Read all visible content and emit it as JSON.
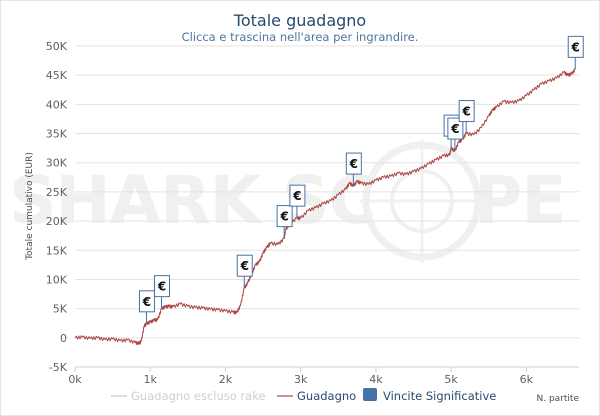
{
  "watermark": {
    "left": "SHARK SC",
    "right": "PE"
  },
  "chart_data": {
    "type": "line",
    "title": "Totale guadagno",
    "subtitle": "Clicca e trascina nell'area per ingrandire.",
    "ylabel": "Totale cumulativo (EUR)",
    "xlabel": "N. partite",
    "xlim": [
      0,
      6700
    ],
    "ylim": [
      -5000,
      50000
    ],
    "x_ticks": [
      0,
      1000,
      2000,
      3000,
      4000,
      5000,
      6000
    ],
    "x_tick_labels": [
      "0k",
      "1k",
      "2k",
      "3k",
      "4k",
      "5k",
      "6k"
    ],
    "y_ticks": [
      -5000,
      0,
      5000,
      10000,
      15000,
      20000,
      25000,
      30000,
      35000,
      40000,
      45000,
      50000
    ],
    "y_tick_labels": [
      "-5K",
      "0",
      "5K",
      "10K",
      "15K",
      "20K",
      "25K",
      "30K",
      "35K",
      "40K",
      "45K",
      "50K"
    ],
    "grid": true,
    "legend_position": "bottom",
    "series": [
      {
        "name": "Guadagno",
        "color": "#aa4643",
        "points": [
          [
            0,
            0
          ],
          [
            100,
            100
          ],
          [
            200,
            -100
          ],
          [
            300,
            0
          ],
          [
            400,
            -300
          ],
          [
            500,
            -200
          ],
          [
            600,
            -500
          ],
          [
            700,
            -400
          ],
          [
            800,
            -800
          ],
          [
            850,
            -1000
          ],
          [
            880,
            -600
          ],
          [
            920,
            2000
          ],
          [
            950,
            2400
          ],
          [
            1000,
            2700
          ],
          [
            1050,
            3000
          ],
          [
            1100,
            3100
          ],
          [
            1150,
            5000
          ],
          [
            1200,
            5300
          ],
          [
            1250,
            5400
          ],
          [
            1300,
            5300
          ],
          [
            1400,
            5800
          ],
          [
            1500,
            5400
          ],
          [
            1600,
            5200
          ],
          [
            1700,
            5100
          ],
          [
            1800,
            4900
          ],
          [
            1900,
            4800
          ],
          [
            2000,
            4600
          ],
          [
            2100,
            4400
          ],
          [
            2150,
            4300
          ],
          [
            2200,
            5500
          ],
          [
            2250,
            8500
          ],
          [
            2300,
            9500
          ],
          [
            2350,
            11000
          ],
          [
            2400,
            12500
          ],
          [
            2450,
            13000
          ],
          [
            2500,
            14500
          ],
          [
            2550,
            15500
          ],
          [
            2600,
            16200
          ],
          [
            2700,
            16000
          ],
          [
            2780,
            17000
          ],
          [
            2800,
            18500
          ],
          [
            2850,
            19500
          ],
          [
            2950,
            20500
          ],
          [
            3000,
            20500
          ],
          [
            3100,
            21800
          ],
          [
            3200,
            22300
          ],
          [
            3300,
            23000
          ],
          [
            3400,
            23500
          ],
          [
            3500,
            24500
          ],
          [
            3600,
            25500
          ],
          [
            3650,
            26500
          ],
          [
            3700,
            26000
          ],
          [
            3750,
            26800
          ],
          [
            3800,
            26500
          ],
          [
            3900,
            26300
          ],
          [
            4000,
            27000
          ],
          [
            4100,
            27500
          ],
          [
            4200,
            27700
          ],
          [
            4300,
            28200
          ],
          [
            4400,
            28000
          ],
          [
            4500,
            28500
          ],
          [
            4600,
            29000
          ],
          [
            4700,
            29800
          ],
          [
            4800,
            30500
          ],
          [
            4900,
            31200
          ],
          [
            4980,
            31300
          ],
          [
            5000,
            32500
          ],
          [
            5050,
            32000
          ],
          [
            5100,
            33500
          ],
          [
            5150,
            34000
          ],
          [
            5200,
            35000
          ],
          [
            5300,
            34800
          ],
          [
            5400,
            36000
          ],
          [
            5500,
            38000
          ],
          [
            5550,
            39000
          ],
          [
            5600,
            39500
          ],
          [
            5700,
            40500
          ],
          [
            5800,
            40300
          ],
          [
            5900,
            40600
          ],
          [
            6000,
            41500
          ],
          [
            6100,
            42500
          ],
          [
            6200,
            43500
          ],
          [
            6300,
            44000
          ],
          [
            6400,
            44500
          ],
          [
            6500,
            45500
          ],
          [
            6550,
            45000
          ],
          [
            6600,
            45200
          ],
          [
            6650,
            46000
          ]
        ]
      },
      {
        "name": "Guadagno escluso rake",
        "color": "#c8c8c8",
        "points": []
      }
    ],
    "significant_wins": {
      "name": "Vincite Significative",
      "color": "#4572a7",
      "symbol": "€",
      "points": [
        [
          950,
          2400
        ],
        [
          1150,
          5000
        ],
        [
          2250,
          8500
        ],
        [
          2780,
          17000
        ],
        [
          2950,
          20500
        ],
        [
          3700,
          26000
        ],
        [
          5000,
          32500
        ],
        [
          5050,
          32000
        ],
        [
          5200,
          35000
        ],
        [
          6650,
          46000
        ]
      ]
    }
  },
  "legend": [
    {
      "label": "Guadagno escluso rake",
      "color": "#c8c8c8",
      "symbol": "line",
      "dim": true
    },
    {
      "label": "Guadagno",
      "color": "#aa4643",
      "symbol": "line",
      "dim": false
    },
    {
      "label": "Vincite Significative",
      "color": "#4572a7",
      "symbol": "box",
      "dim": false
    }
  ]
}
